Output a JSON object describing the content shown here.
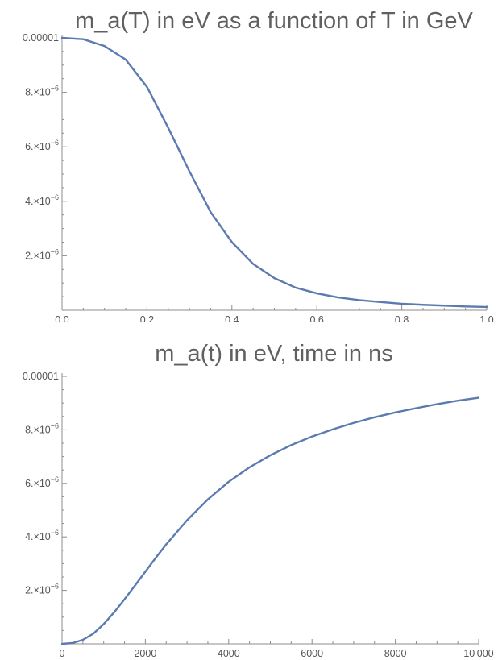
{
  "chart_data": [
    {
      "type": "line",
      "title": "m_a(T) in eV as a function of T in GeV",
      "xlabel": "",
      "ylabel": "",
      "xlim": [
        0,
        1.0
      ],
      "ylim": [
        0,
        1e-05
      ],
      "x_ticks": [
        {
          "value": 0.0,
          "label": "0.0"
        },
        {
          "value": 0.2,
          "label": "0.2"
        },
        {
          "value": 0.4,
          "label": "0.4"
        },
        {
          "value": 0.6,
          "label": "0.6"
        },
        {
          "value": 0.8,
          "label": "0.8"
        },
        {
          "value": 1.0,
          "label": "1.0"
        }
      ],
      "y_ticks": [
        {
          "value": 2e-06,
          "mantissa": "2.×10",
          "exponent": "−6"
        },
        {
          "value": 4e-06,
          "mantissa": "4.×10",
          "exponent": "−6"
        },
        {
          "value": 6e-06,
          "mantissa": "6.×10",
          "exponent": "−6"
        },
        {
          "value": 8e-06,
          "mantissa": "8.×10",
          "exponent": "−6"
        },
        {
          "value": 1e-05,
          "mantissa": "0.00001",
          "exponent": ""
        }
      ],
      "color": "#5b7bb0",
      "series": [
        {
          "x": [
            0.0,
            0.05,
            0.1,
            0.15,
            0.2,
            0.25,
            0.3,
            0.35,
            0.4,
            0.45,
            0.5,
            0.55,
            0.6,
            0.65,
            0.7,
            0.75,
            0.8,
            0.85,
            0.9,
            0.95,
            1.0
          ],
          "values": [
            1e-05,
            9.95e-06,
            9.7e-06,
            9.2e-06,
            8.2e-06,
            6.7e-06,
            5.1e-06,
            3.6e-06,
            2.5e-06,
            1.7e-06,
            1.18e-06,
            8.3e-07,
            6.2e-07,
            4.7e-07,
            3.7e-07,
            3e-07,
            2.4e-07,
            2e-07,
            1.7e-07,
            1.4e-07,
            1.2e-07
          ]
        }
      ]
    },
    {
      "type": "line",
      "title": "m_a(t) in eV, time in ns",
      "xlabel": "",
      "ylabel": "",
      "xlim": [
        0,
        10000
      ],
      "ylim": [
        0,
        1e-05
      ],
      "x_ticks": [
        {
          "value": 0,
          "label": "0"
        },
        {
          "value": 2000,
          "label": "2000"
        },
        {
          "value": 4000,
          "label": "4000"
        },
        {
          "value": 6000,
          "label": "6000"
        },
        {
          "value": 8000,
          "label": "8000"
        },
        {
          "value": 10000,
          "label": "10 000"
        }
      ],
      "y_ticks": [
        {
          "value": 2e-06,
          "mantissa": "2.×10",
          "exponent": "−6"
        },
        {
          "value": 4e-06,
          "mantissa": "4.×10",
          "exponent": "−6"
        },
        {
          "value": 6e-06,
          "mantissa": "6.×10",
          "exponent": "−6"
        },
        {
          "value": 8e-06,
          "mantissa": "8.×10",
          "exponent": "−6"
        },
        {
          "value": 1e-05,
          "mantissa": "0.00001",
          "exponent": ""
        }
      ],
      "color": "#5b7bb0",
      "series": [
        {
          "x": [
            0,
            250,
            500,
            750,
            1000,
            1250,
            1500,
            1750,
            2000,
            2250,
            2500,
            3000,
            3500,
            4000,
            4500,
            5000,
            5500,
            6000,
            6500,
            7000,
            7500,
            8000,
            8500,
            9000,
            9500,
            10000
          ],
          "values": [
            0.0,
            3e-08,
            1.5e-07,
            3.8e-07,
            7.4e-07,
            1.18e-06,
            1.67e-06,
            2.18e-06,
            2.7e-06,
            3.22e-06,
            3.72e-06,
            4.62e-06,
            5.4e-06,
            6.06e-06,
            6.6e-06,
            7.05e-06,
            7.43e-06,
            7.75e-06,
            8.02e-06,
            8.26e-06,
            8.47e-06,
            8.65e-06,
            8.81e-06,
            8.96e-06,
            9.09e-06,
            9.2e-06
          ]
        }
      ]
    }
  ]
}
